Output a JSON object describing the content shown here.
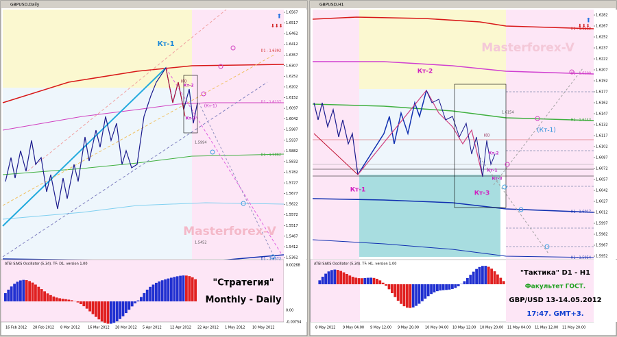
{
  "windows": [
    {
      "title": "GBPUSD,Daily",
      "price_labels": [
        "1.6567",
        "1.6517",
        "1.6462",
        "1.6412",
        "1.6357",
        "1.6307",
        "1.6252",
        "1.6202",
        "1.6152",
        "1.6097",
        "1.6042",
        "1.5987",
        "1.5937",
        "1.5882",
        "1.5832",
        "1.5782",
        "1.5727",
        "1.5677",
        "1.5622",
        "1.5572",
        "1.5517",
        "1.5467",
        "1.5412",
        "1.5362"
      ],
      "date_labels": [
        "16 Feb 2012",
        "28 Feb 2012",
        "8 Mar 2012",
        "16 Mar 2012",
        "28 Mar 2012",
        "5 Apr 2012",
        "12 Apr 2012",
        "22 Apr 2012",
        "1 May 2012",
        "10 May 2012"
      ],
      "annotations": [
        "Кт-1",
        "(0)",
        "Кт-2",
        "(Кт-1)",
        "Кт-3",
        "D1 - 1.6392",
        "D1 - 1.6137",
        "1.5994",
        "D1 - 1.5862",
        "1.5452",
        "D1 - 1.5372",
        "Masterforex-V"
      ],
      "oscillator": {
        "label": "ATEI SAKS Oscillator (5,34). TF: D1. version 1.00",
        "scale": [
          "0.00268",
          "0.00",
          "-0.00754"
        ]
      },
      "caption": [
        "\"Стратегия\"",
        "Monthly - Daily"
      ]
    },
    {
      "title": "GBPUSD,H1",
      "price_labels": [
        "1.6282",
        "1.6267",
        "1.6252",
        "1.6237",
        "1.6222",
        "1.6207",
        "1.6192",
        "1.6177",
        "1.6162",
        "1.6147",
        "1.6132",
        "1.6117",
        "1.6102",
        "1.6087",
        "1.6072",
        "1.6057",
        "1.6042",
        "1.6027",
        "1.6012",
        "1.5997",
        "1.5982",
        "1.5967",
        "1.5952"
      ],
      "date_labels": [
        "8 May 2012",
        "9 May 04:00",
        "9 May 12:00",
        "9 May 20:00",
        "10 May 04:00",
        "10 May 12:00",
        "10 May 20:00",
        "11 May 04:00",
        "11 May 12:00",
        "11 May 20:00"
      ],
      "annotations": [
        "Masterforex-V",
        "Кт-2",
        "(Кт-1)",
        "(0)",
        "Кт-2",
        "Кт-1",
        "Кт-3",
        "Кт-1",
        "Кт-3",
        "H1 - 1.6269",
        "H1 - 1.6200",
        "H1 - 1.6143",
        "1.6154",
        "H1 - 1.6017",
        "H1 - 1.5954"
      ],
      "oscillator": {
        "label": "ATEI SAKS Oscillator (5,34). TF: H1. version 1.00",
        "scale": []
      },
      "caption": [
        "\"Тактика\" D1 - H1",
        "Факультет ГОСТ.",
        "GBP/USD 13-14.05.2012",
        "17:47. GMT+3."
      ]
    }
  ]
}
